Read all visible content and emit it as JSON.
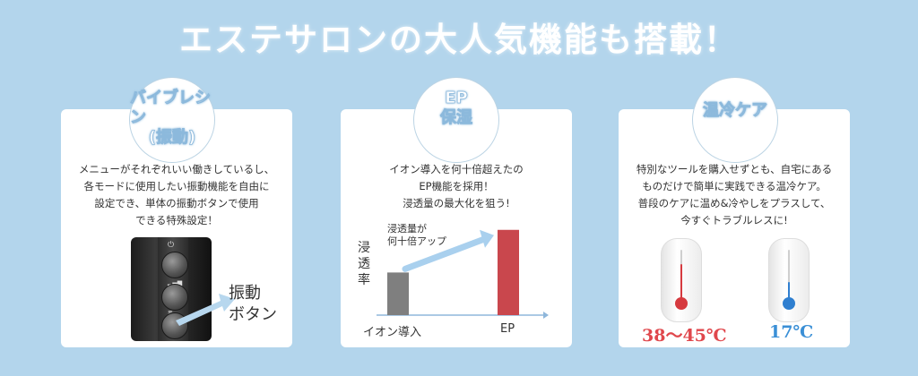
{
  "headline": "エステサロンの大人気機能も搭載！",
  "cards": [
    {
      "badge_line1": "バイブレシン",
      "badge_line2": "(振動)",
      "lines": [
        "メニューがそれぞれいい働きしているし、",
        "各モードに使用したい振動機能を自由に",
        "設定でき、単体の振動ボタンで使用",
        "できる特殊設定！"
      ],
      "callout_line1": "振動",
      "callout_line2": "ボタン"
    },
    {
      "badge_line1": "EP",
      "badge_line2": "保湿",
      "lines": [
        "イオン導入を何十倍超えたの",
        "EP機能を採用！",
        "浸透量の最大化を狙う!"
      ],
      "annotation_line1": "浸透量が",
      "annotation_line2": "何十倍アップ",
      "ylabel": "浸透率"
    },
    {
      "badge_line1": "温冷ケア",
      "lines": [
        "特別なツールを購入せずとも、自宅にある",
        "ものだけで簡単に実践できる温冷ケア。",
        "普段のケアに温め&冷やしをプラスして、",
        "今すぐトラブルレスに!"
      ],
      "warm_temp": "38～45℃",
      "cold_temp": "17℃",
      "warm_color": "#e0474c",
      "cold_color": "#3a8fd6"
    }
  ],
  "chart_data": {
    "type": "bar",
    "categories": [
      "イオン導入",
      "EP"
    ],
    "values": [
      1,
      2.0
    ],
    "colors": [
      "#7f7f7f",
      "#c9474d"
    ],
    "title": "",
    "xlabel": "",
    "ylabel": "浸透率",
    "annotation": "浸透量が何十倍アップ",
    "arrow": "from イオン導入 bar to EP bar, rising"
  }
}
